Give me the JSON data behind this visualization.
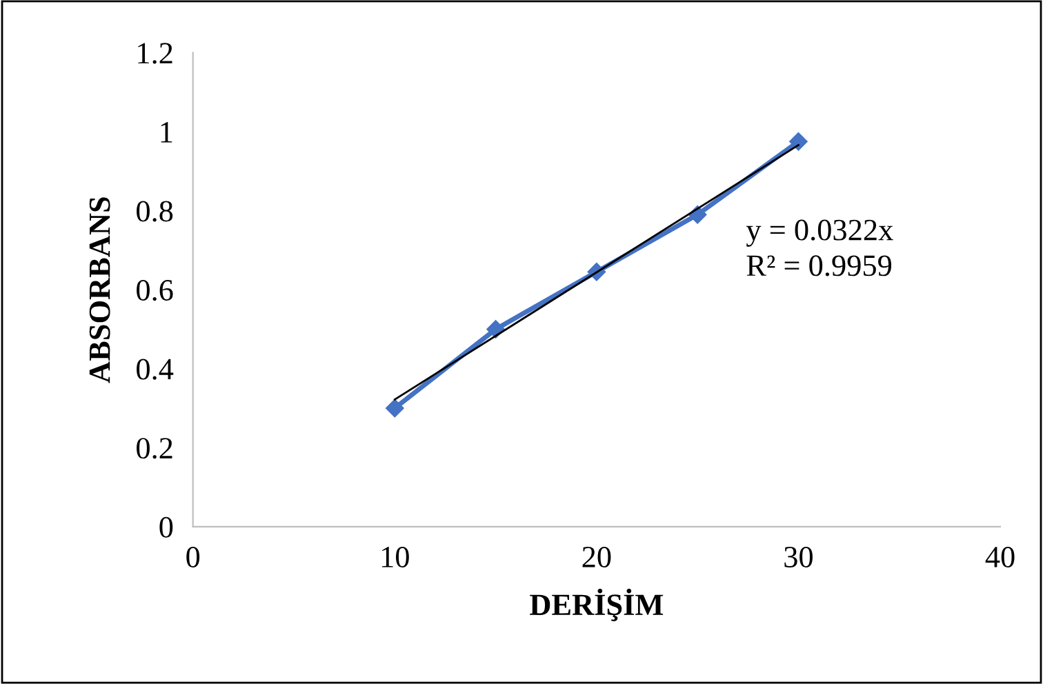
{
  "chart_data": {
    "type": "line",
    "xlabel": "DERİŞİM",
    "ylabel": "ABSORBANS",
    "x": [
      10,
      15,
      20,
      25,
      30
    ],
    "series": [
      {
        "color": "#4472c4",
        "values": [
          0.3,
          0.5,
          0.645,
          0.79,
          0.975
        ],
        "marker": "diamond"
      },
      {
        "type": "line",
        "color": "#000000",
        "x": [
          10,
          30
        ],
        "values": [
          0.322,
          0.966
        ],
        "marker": "none"
      }
    ],
    "annotations": [
      "y = 0.0322x",
      "R² = 0.9959"
    ],
    "xlim": [
      0,
      40
    ],
    "xticks": [
      0,
      10,
      20,
      30,
      40
    ],
    "ylim": [
      0,
      1.2
    ],
    "yticks": [
      0,
      0.2,
      0.4,
      0.6,
      0.8,
      1,
      1.2
    ],
    "grid": false,
    "legend": false
  }
}
